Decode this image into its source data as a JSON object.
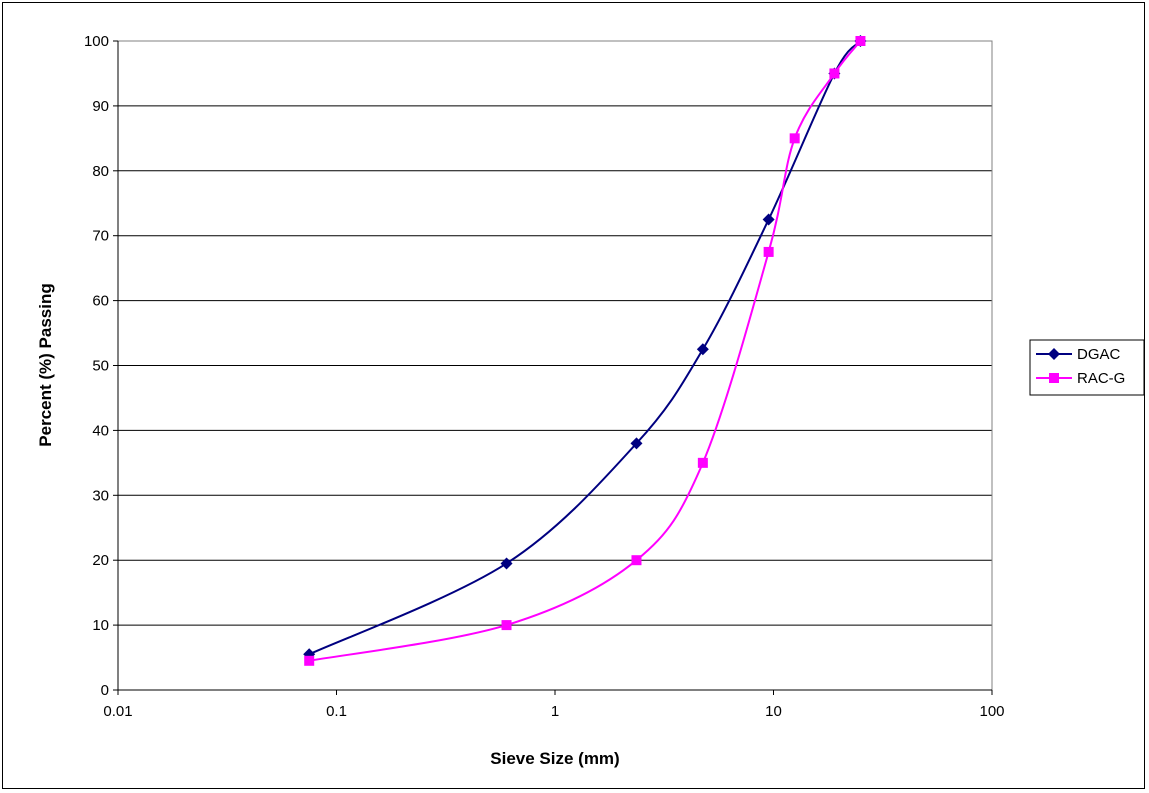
{
  "chart_data": {
    "type": "line",
    "xscale": "log",
    "xlim": [
      0.01,
      100
    ],
    "ylim": [
      0,
      100
    ],
    "x_ticks": [
      "0.01",
      "0.1",
      "1",
      "10",
      "100"
    ],
    "y_ticks": [
      "0",
      "10",
      "20",
      "30",
      "40",
      "50",
      "60",
      "70",
      "80",
      "90",
      "100"
    ],
    "xlabel": "Sieve Size (mm)",
    "ylabel": "Percent (%) Passing",
    "grid": "horizontal",
    "legend_position": "right",
    "series": [
      {
        "name": "DGAC",
        "color": "#000080",
        "marker": "diamond",
        "x": [
          0.075,
          0.6,
          2.36,
          4.75,
          9.5,
          19,
          25
        ],
        "y": [
          5.5,
          19.5,
          38,
          52.5,
          72.5,
          95,
          100
        ]
      },
      {
        "name": "RAC-G",
        "color": "#ff00ff",
        "marker": "square",
        "x": [
          0.075,
          0.6,
          2.36,
          4.75,
          9.5,
          12.5,
          19,
          25
        ],
        "y": [
          4.5,
          10,
          20,
          35,
          67.5,
          85,
          95,
          100
        ]
      }
    ]
  }
}
